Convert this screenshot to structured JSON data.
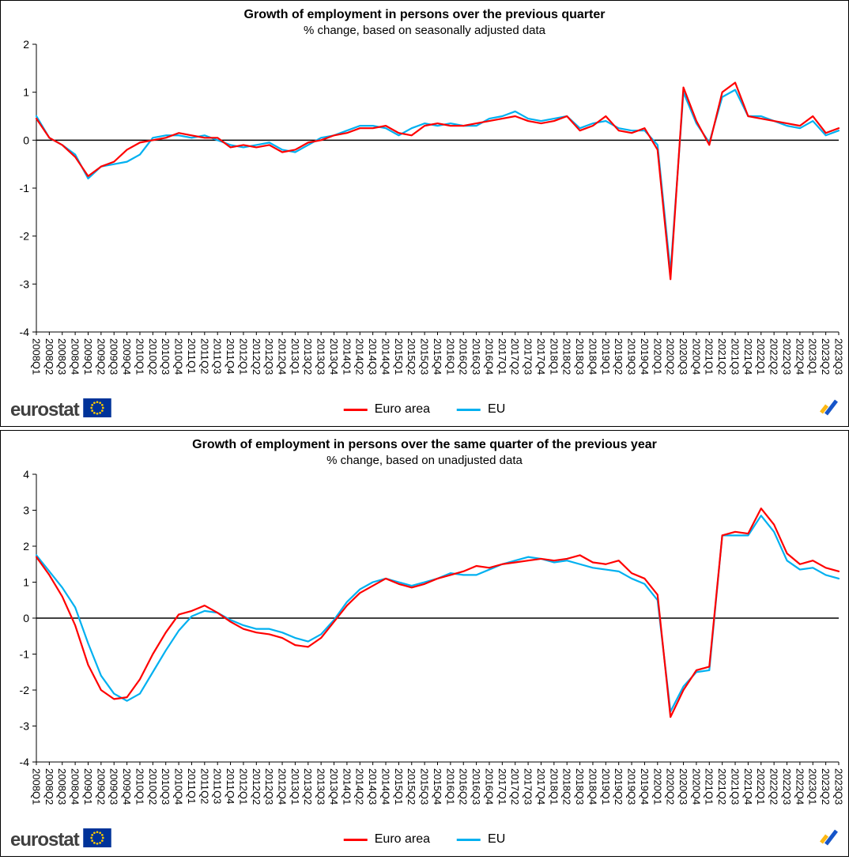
{
  "branding": {
    "wordmark": "eurostat",
    "wordmark_color": "#404040",
    "flag_blue": "#003399",
    "star_yellow": "#ffcc00",
    "corner_yellow": "#fdb813",
    "corner_blue": "#1655c9"
  },
  "chart_data": [
    {
      "type": "line",
      "title": "Growth of employment in persons over the previous quarter",
      "subtitle": "% change, based on seasonally adjusted data",
      "ylim": [
        -4,
        2
      ],
      "ytick_step": 1,
      "grid": false,
      "legend_position": "bottom",
      "categories": [
        "2008Q1",
        "2008Q2",
        "2008Q3",
        "2008Q4",
        "2009Q1",
        "2009Q2",
        "2009Q3",
        "2009Q4",
        "2010Q1",
        "2010Q2",
        "2010Q3",
        "2010Q4",
        "2011Q1",
        "2011Q2",
        "2011Q3",
        "2011Q4",
        "2012Q1",
        "2012Q2",
        "2012Q3",
        "2012Q4",
        "2013Q1",
        "2013Q2",
        "2013Q3",
        "2013Q4",
        "2014Q1",
        "2014Q2",
        "2014Q3",
        "2014Q4",
        "2015Q1",
        "2015Q2",
        "2015Q3",
        "2015Q4",
        "2016Q1",
        "2016Q2",
        "2016Q3",
        "2016Q4",
        "2017Q1",
        "2017Q2",
        "2017Q3",
        "2017Q4",
        "2018Q1",
        "2018Q2",
        "2018Q3",
        "2018Q4",
        "2019Q1",
        "2019Q2",
        "2019Q3",
        "2019Q4",
        "2020Q1",
        "2020Q2",
        "2020Q3",
        "2020Q4",
        "2021Q1",
        "2021Q2",
        "2021Q3",
        "2021Q4",
        "2022Q1",
        "2022Q2",
        "2022Q3",
        "2022Q4",
        "2023Q1",
        "2023Q2",
        "2023Q3"
      ],
      "series": [
        {
          "name": "Euro area",
          "color": "#ff0000",
          "values": [
            0.45,
            0.05,
            -0.1,
            -0.35,
            -0.75,
            -0.55,
            -0.45,
            -0.2,
            -0.05,
            0.0,
            0.05,
            0.15,
            0.1,
            0.05,
            0.05,
            -0.15,
            -0.1,
            -0.15,
            -0.1,
            -0.25,
            -0.2,
            -0.05,
            0.0,
            0.1,
            0.15,
            0.25,
            0.25,
            0.3,
            0.15,
            0.1,
            0.3,
            0.35,
            0.3,
            0.3,
            0.35,
            0.4,
            0.45,
            0.5,
            0.4,
            0.35,
            0.4,
            0.5,
            0.2,
            0.3,
            0.5,
            0.2,
            0.15,
            0.25,
            -0.2,
            -2.9,
            1.1,
            0.4,
            -0.1,
            1.0,
            1.2,
            0.5,
            0.45,
            0.4,
            0.35,
            0.3,
            0.5,
            0.15,
            0.25
          ]
        },
        {
          "name": "EU",
          "color": "#00b0f0",
          "values": [
            0.5,
            0.05,
            -0.1,
            -0.3,
            -0.8,
            -0.55,
            -0.5,
            -0.45,
            -0.3,
            0.05,
            0.1,
            0.1,
            0.05,
            0.1,
            0.0,
            -0.1,
            -0.15,
            -0.1,
            -0.05,
            -0.2,
            -0.25,
            -0.1,
            0.05,
            0.1,
            0.2,
            0.3,
            0.3,
            0.25,
            0.1,
            0.25,
            0.35,
            0.3,
            0.35,
            0.3,
            0.3,
            0.45,
            0.5,
            0.6,
            0.45,
            0.4,
            0.45,
            0.5,
            0.25,
            0.35,
            0.4,
            0.25,
            0.2,
            0.2,
            -0.1,
            -2.75,
            1.0,
            0.35,
            -0.05,
            0.9,
            1.05,
            0.5,
            0.5,
            0.4,
            0.3,
            0.25,
            0.4,
            0.1,
            0.2
          ]
        }
      ]
    },
    {
      "type": "line",
      "title": "Growth of employment in persons over the same quarter of the previous year",
      "subtitle": "% change, based on unadjusted data",
      "ylim": [
        -4,
        4
      ],
      "ytick_step": 1,
      "grid": false,
      "legend_position": "bottom",
      "categories": [
        "2008Q1",
        "2008Q2",
        "2008Q3",
        "2008Q4",
        "2009Q1",
        "2009Q2",
        "2009Q3",
        "2009Q4",
        "2010Q1",
        "2010Q2",
        "2010Q3",
        "2010Q4",
        "2011Q1",
        "2011Q2",
        "2011Q3",
        "2011Q4",
        "2012Q1",
        "2012Q2",
        "2012Q3",
        "2012Q4",
        "2013Q1",
        "2013Q2",
        "2013Q3",
        "2013Q4",
        "2014Q1",
        "2014Q2",
        "2014Q3",
        "2014Q4",
        "2015Q1",
        "2015Q2",
        "2015Q3",
        "2015Q4",
        "2016Q1",
        "2016Q2",
        "2016Q3",
        "2016Q4",
        "2017Q1",
        "2017Q2",
        "2017Q3",
        "2017Q4",
        "2018Q1",
        "2018Q2",
        "2018Q3",
        "2018Q4",
        "2019Q1",
        "2019Q2",
        "2019Q3",
        "2019Q4",
        "2020Q1",
        "2020Q2",
        "2020Q3",
        "2020Q4",
        "2021Q1",
        "2021Q2",
        "2021Q3",
        "2021Q4",
        "2022Q1",
        "2022Q2",
        "2022Q3",
        "2022Q4",
        "2023Q1",
        "2023Q2",
        "2023Q3"
      ],
      "series": [
        {
          "name": "Euro area",
          "color": "#ff0000",
          "values": [
            1.7,
            1.2,
            0.6,
            -0.2,
            -1.3,
            -2.0,
            -2.25,
            -2.2,
            -1.7,
            -1.0,
            -0.4,
            0.1,
            0.2,
            0.35,
            0.15,
            -0.1,
            -0.3,
            -0.4,
            -0.45,
            -0.55,
            -0.75,
            -0.8,
            -0.55,
            -0.1,
            0.35,
            0.7,
            0.9,
            1.1,
            0.95,
            0.85,
            0.95,
            1.1,
            1.2,
            1.3,
            1.45,
            1.4,
            1.5,
            1.55,
            1.6,
            1.65,
            1.6,
            1.65,
            1.75,
            1.55,
            1.5,
            1.6,
            1.25,
            1.1,
            0.65,
            -2.75,
            -2.0,
            -1.45,
            -1.35,
            2.3,
            2.4,
            2.35,
            3.05,
            2.6,
            1.8,
            1.5,
            1.6,
            1.4,
            1.3
          ]
        },
        {
          "name": "EU",
          "color": "#00b0f0",
          "values": [
            1.75,
            1.3,
            0.85,
            0.3,
            -0.7,
            -1.6,
            -2.1,
            -2.3,
            -2.1,
            -1.5,
            -0.9,
            -0.35,
            0.05,
            0.2,
            0.15,
            -0.05,
            -0.2,
            -0.3,
            -0.3,
            -0.4,
            -0.55,
            -0.65,
            -0.45,
            -0.05,
            0.45,
            0.8,
            1.0,
            1.1,
            1.0,
            0.9,
            1.0,
            1.1,
            1.25,
            1.2,
            1.2,
            1.35,
            1.5,
            1.6,
            1.7,
            1.65,
            1.55,
            1.6,
            1.5,
            1.4,
            1.35,
            1.3,
            1.1,
            0.95,
            0.5,
            -2.6,
            -1.9,
            -1.5,
            -1.45,
            2.3,
            2.3,
            2.3,
            2.85,
            2.4,
            1.6,
            1.35,
            1.4,
            1.2,
            1.1
          ]
        }
      ]
    }
  ]
}
